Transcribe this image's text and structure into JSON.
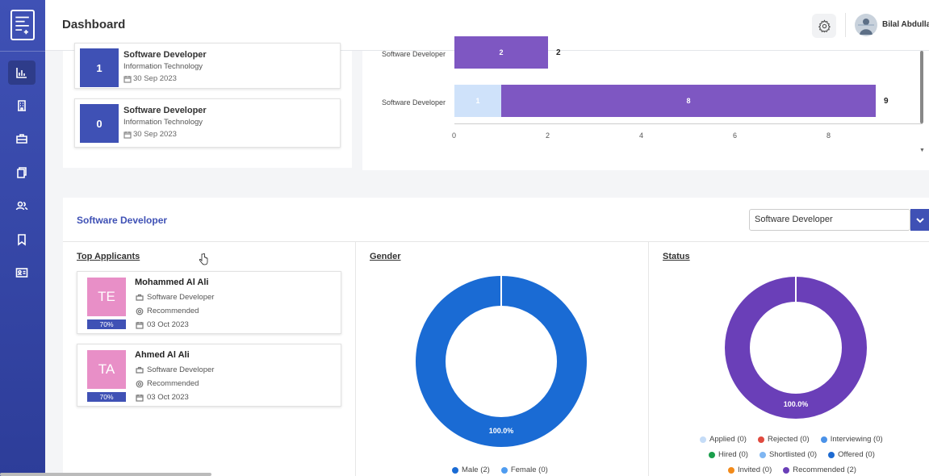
{
  "header": {
    "title": "Dashboard",
    "user_name": "Bilal Abdulla"
  },
  "sidebar": {
    "items": [
      {
        "icon": "bar-chart-icon",
        "active": true
      },
      {
        "icon": "building-icon",
        "active": false
      },
      {
        "icon": "briefcase-icon",
        "active": false
      },
      {
        "icon": "documents-icon",
        "active": false
      },
      {
        "icon": "users-icon",
        "active": false
      },
      {
        "icon": "bookmark-icon",
        "active": false
      },
      {
        "icon": "id-card-icon",
        "active": false
      }
    ]
  },
  "jobs": [
    {
      "count": "1",
      "title": "Software Developer",
      "department": "Information Technology",
      "date": "30 Sep 2023"
    },
    {
      "count": "0",
      "title": "Software Developer",
      "department": "Information Technology",
      "date": "30 Sep 2023"
    }
  ],
  "chart_data": {
    "type": "bar",
    "orientation": "horizontal",
    "stacked": true,
    "categories": [
      "Software Developer",
      "Software Developer"
    ],
    "series": [
      {
        "values": [
          0,
          1
        ],
        "color": "#cfe2fa"
      },
      {
        "values": [
          2,
          8
        ],
        "color": "#7e57c2"
      }
    ],
    "totals": [
      2,
      9
    ],
    "segment_labels": [
      [
        "",
        "2"
      ],
      [
        "1",
        "8"
      ]
    ],
    "total_labels": [
      "2",
      "9"
    ],
    "x_ticks": [
      "0",
      "2",
      "4",
      "6",
      "8"
    ],
    "xlim": [
      0,
      10
    ],
    "grid": false
  },
  "section": {
    "title": "Software Developer",
    "select_value": "Software Developer",
    "top_applicants_title": "Top Applicants",
    "gender_title": "Gender",
    "status_title": "Status"
  },
  "applicants": [
    {
      "initials": "TE",
      "name": "Mohammed Al Ali",
      "position": "Software Developer",
      "status": "Recommended",
      "date": "03 Oct 2023",
      "score": "70%"
    },
    {
      "initials": "TA",
      "name": "Ahmed Al Ali",
      "position": "Software Developer",
      "status": "Recommended",
      "date": "03 Oct 2023",
      "score": "70%"
    }
  ],
  "gender_chart": {
    "type": "pie",
    "label": "100.0%",
    "slices": [
      {
        "name": "Male (2)",
        "value": 2,
        "color": "#1a6bd4"
      },
      {
        "name": "Female (0)",
        "value": 0,
        "color": "#4f9cf0"
      }
    ]
  },
  "status_chart": {
    "type": "pie",
    "label": "100.0%",
    "slices": [
      {
        "name": "Applied (0)",
        "value": 0,
        "color": "#c5dcf7"
      },
      {
        "name": "Rejected (0)",
        "value": 0,
        "color": "#e04a3f"
      },
      {
        "name": "Interviewing (0)",
        "value": 0,
        "color": "#4b92e8"
      },
      {
        "name": "Hired (0)",
        "value": 0,
        "color": "#1a9e4b"
      },
      {
        "name": "Shortlisted (0)",
        "value": 0,
        "color": "#7fb6f2"
      },
      {
        "name": "Offered (0)",
        "value": 0,
        "color": "#1d6ad1"
      },
      {
        "name": "Invited (0)",
        "value": 0,
        "color": "#f28a1a"
      },
      {
        "name": "Recommended (2)",
        "value": 2,
        "color": "#6a3fb8"
      }
    ]
  }
}
